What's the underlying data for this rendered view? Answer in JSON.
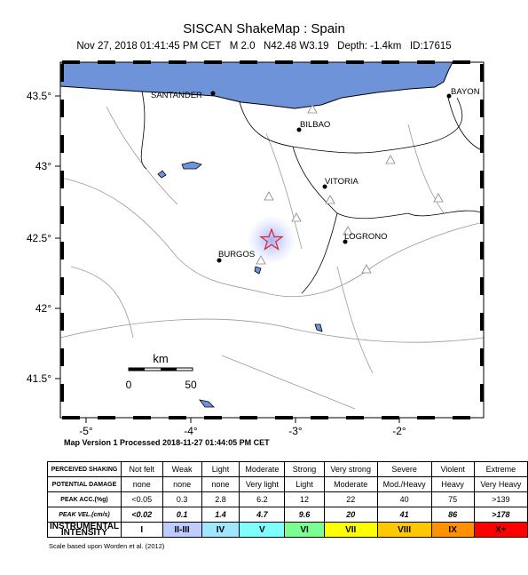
{
  "header": {
    "title": "SISCAN ShakeMap : Spain",
    "subtitle": "Nov 27, 2018 01:41:45 PM CET   M 2.0   N42.48 W3.19   Depth: -1.4km   ID:17615"
  },
  "map": {
    "lat_labels": [
      "43.5°",
      "43°",
      "42.5°",
      "42°",
      "41.5°"
    ],
    "lon_labels": [
      "-5°",
      "-4°",
      "-3°",
      "-2°"
    ],
    "cities": [
      "SANTANDER",
      "BAYON",
      "BILBAO",
      "VITORIA",
      "LOGRONO",
      "BURGOS"
    ],
    "scale_bar": {
      "unit": "km",
      "start": "0",
      "end": "50"
    },
    "version": "Map Version 1 Processed 2018-11-27 01:44:05 PM CET"
  },
  "legend": {
    "columns": [
      "Not felt",
      "Weak",
      "Light",
      "Moderate",
      "Strong",
      "Very strong",
      "Severe",
      "Violent",
      "Extreme"
    ],
    "rows": [
      {
        "label": "PERCEIVED SHAKING",
        "cells": [
          "Not felt",
          "Weak",
          "Light",
          "Moderate",
          "Strong",
          "Very strong",
          "Severe",
          "Violent",
          "Extreme"
        ]
      },
      {
        "label": "POTENTIAL DAMAGE",
        "cells": [
          "none",
          "none",
          "none",
          "Very light",
          "Light",
          "Moderate",
          "Mod./Heavy",
          "Heavy",
          "Very Heavy"
        ]
      },
      {
        "label": "PEAK ACC.(%g)",
        "cells": [
          "<0.05",
          "0.3",
          "2.8",
          "6.2",
          "12",
          "22",
          "40",
          "75",
          ">139"
        ]
      },
      {
        "label": "PEAK VEL.(cm/s)",
        "cells": [
          "<0.02",
          "0.1",
          "1.4",
          "4.7",
          "9.6",
          "20",
          "41",
          "86",
          ">178"
        ]
      },
      {
        "label": "INSTRUMENTAL INTENSITY",
        "cells": [
          "I",
          "II-III",
          "IV",
          "V",
          "VI",
          "VII",
          "VIII",
          "IX",
          "X+"
        ]
      }
    ],
    "intensity_colors": [
      "#ffffff",
      "#bfccff",
      "#a0e6ff",
      "#80ffff",
      "#7aff93",
      "#ffff00",
      "#ffc800",
      "#ff9100",
      "#ff0000"
    ],
    "note": "Scale based upon Worden et al. (2012)"
  }
}
